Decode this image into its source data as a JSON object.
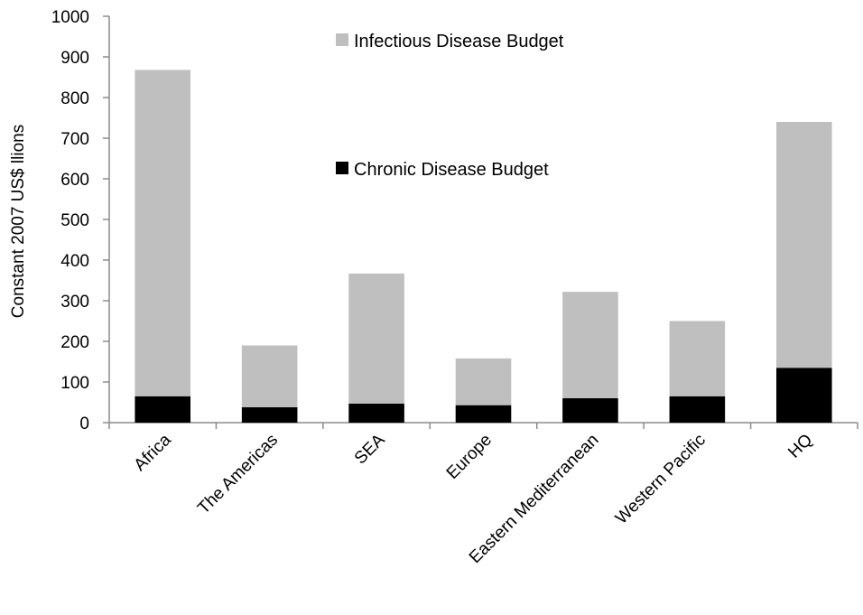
{
  "chart_data": {
    "type": "bar",
    "stacked": true,
    "title": "",
    "xlabel": "",
    "ylabel": "Constant 2007 US$ llions",
    "ylim": [
      0,
      1000
    ],
    "yticks": [
      0,
      100,
      200,
      300,
      400,
      500,
      600,
      700,
      800,
      900,
      1000
    ],
    "grid": false,
    "legend_position": "inside-top-center",
    "categories": [
      "Africa",
      "The Americas",
      "SEA",
      "Europe",
      "Eastern Mediterranean",
      "Western Pacific",
      "HQ"
    ],
    "series": [
      {
        "name": "Chronic Disease Budget",
        "color": "#000000",
        "values": [
          65,
          38,
          47,
          43,
          60,
          65,
          135
        ]
      },
      {
        "name": "Infectious Disease Budget",
        "color": "#bfbfbf",
        "values": [
          803,
          152,
          320,
          115,
          262,
          185,
          605
        ]
      }
    ],
    "legend": [
      {
        "label": "Infectious Disease Budget",
        "color": "#bfbfbf"
      },
      {
        "label": "Chronic Disease Budget",
        "color": "#000000"
      }
    ]
  }
}
